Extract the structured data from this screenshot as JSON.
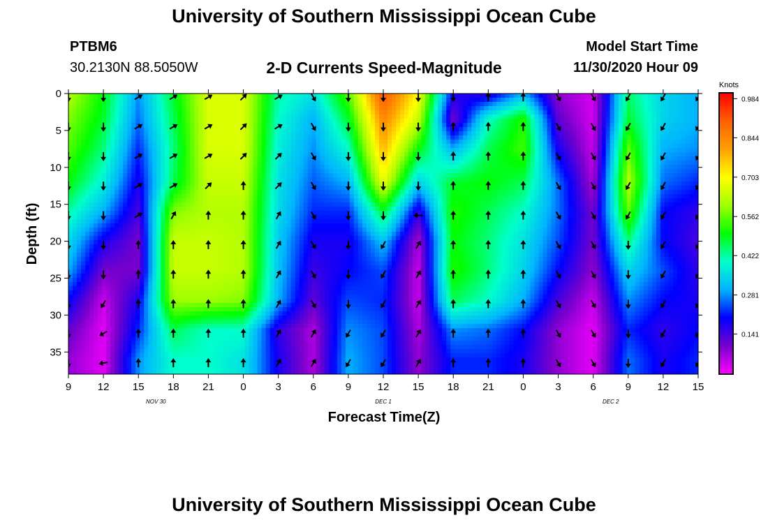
{
  "header": {
    "title": "University of Southern Mississippi Ocean Cube",
    "station_id": "PTBM6",
    "station_location": "30.2130N 88.5050W",
    "chart_subtitle": "2-D Currents Speed-Magnitude",
    "model_start_label": "Model Start Time",
    "model_start_value": "11/30/2020 Hour 09"
  },
  "footer": {
    "title": "University of Southern Mississippi Ocean Cube"
  },
  "colorbar": {
    "unit": "Knots",
    "ticks": [
      "0.984",
      "0.844",
      "0.703",
      "0.562",
      "0.422",
      "0.281",
      "0.141"
    ],
    "tick_values": [
      0.984,
      0.844,
      0.703,
      0.562,
      0.422,
      0.281,
      0.141
    ],
    "range": [
      0.0,
      1.0
    ],
    "colors": [
      "#ff00ff",
      "#7700cc",
      "#0000ff",
      "#00b4ff",
      "#00ffcc",
      "#00ff00",
      "#a0ff00",
      "#ffff00",
      "#ffa000",
      "#ff6000",
      "#ff0000"
    ]
  },
  "chart_data": {
    "type": "heatmap",
    "xlabel": "Forecast Time(Z)",
    "ylabel": "Depth (ft)",
    "x_tick_labels": [
      "9",
      "12",
      "15",
      "18",
      "21",
      "0",
      "3",
      "6",
      "9",
      "12",
      "15",
      "18",
      "21",
      "0",
      "3",
      "6",
      "9",
      "12",
      "15"
    ],
    "x_hours": [
      0,
      3,
      6,
      9,
      12,
      15,
      18,
      21,
      24,
      27,
      30,
      33,
      36,
      39,
      42,
      45,
      48,
      51,
      54
    ],
    "date_labels": [
      {
        "text": "NOV 30",
        "hour": 7.5
      },
      {
        "text": "DEC 1",
        "hour": 27
      },
      {
        "text": "DEC 2",
        "hour": 46.5
      }
    ],
    "y_tick_labels": [
      "0",
      "5",
      "10",
      "15",
      "20",
      "25",
      "30",
      "35"
    ],
    "y_tick_values": [
      0,
      5,
      10,
      15,
      20,
      25,
      30,
      35
    ],
    "xlim_hours": [
      0,
      54
    ],
    "ylim_ft": [
      0,
      38
    ],
    "depths": [
      0,
      3.5,
      7.5,
      12,
      16,
      20,
      24,
      28,
      32,
      36
    ],
    "speed_knots": [
      [
        0.62,
        0.58,
        0.55,
        0.5,
        0.42,
        0.35,
        0.3,
        0.2,
        0.12,
        0.08
      ],
      [
        0.5,
        0.48,
        0.44,
        0.38,
        0.3,
        0.18,
        0.1,
        0.04,
        0.02,
        0.02
      ],
      [
        0.28,
        0.26,
        0.22,
        0.18,
        0.14,
        0.1,
        0.1,
        0.18,
        0.22,
        0.28
      ],
      [
        0.48,
        0.46,
        0.44,
        0.46,
        0.58,
        0.64,
        0.64,
        0.6,
        0.46,
        0.4
      ],
      [
        0.66,
        0.66,
        0.66,
        0.64,
        0.62,
        0.64,
        0.64,
        0.6,
        0.4,
        0.4
      ],
      [
        0.66,
        0.66,
        0.66,
        0.64,
        0.62,
        0.62,
        0.62,
        0.58,
        0.4,
        0.36
      ],
      [
        0.42,
        0.4,
        0.38,
        0.36,
        0.35,
        0.33,
        0.32,
        0.3,
        0.16,
        0.18
      ],
      [
        0.36,
        0.3,
        0.28,
        0.25,
        0.22,
        0.18,
        0.15,
        0.12,
        0.06,
        0.06
      ],
      [
        0.55,
        0.48,
        0.4,
        0.3,
        0.22,
        0.18,
        0.2,
        0.24,
        0.28,
        0.3
      ],
      [
        0.92,
        0.84,
        0.78,
        0.68,
        0.48,
        0.32,
        0.24,
        0.22,
        0.24,
        0.24
      ],
      [
        0.7,
        0.64,
        0.5,
        0.34,
        0.16,
        0.06,
        0.04,
        0.04,
        0.06,
        0.08
      ],
      [
        0.18,
        0.1,
        0.3,
        0.48,
        0.52,
        0.5,
        0.52,
        0.46,
        0.28,
        0.22
      ],
      [
        0.16,
        0.4,
        0.46,
        0.5,
        0.46,
        0.44,
        0.44,
        0.4,
        0.26,
        0.22
      ],
      [
        0.3,
        0.52,
        0.54,
        0.46,
        0.4,
        0.36,
        0.34,
        0.3,
        0.2,
        0.18
      ],
      [
        0.08,
        0.12,
        0.18,
        0.26,
        0.26,
        0.24,
        0.2,
        0.14,
        0.08,
        0.08
      ],
      [
        0.03,
        0.03,
        0.04,
        0.06,
        0.1,
        0.1,
        0.08,
        0.04,
        0.02,
        0.02
      ],
      [
        0.45,
        0.48,
        0.56,
        0.62,
        0.56,
        0.44,
        0.34,
        0.28,
        0.22,
        0.26
      ],
      [
        0.34,
        0.34,
        0.3,
        0.26,
        0.2,
        0.2,
        0.24,
        0.2,
        0.16,
        0.18
      ],
      [
        0.3,
        0.3,
        0.28,
        0.22,
        0.16,
        0.14,
        0.16,
        0.18,
        0.2,
        0.22
      ]
    ],
    "arrow_hours": [
      0,
      3,
      6,
      9,
      12,
      15,
      18,
      21,
      24,
      27,
      30,
      33,
      36,
      39,
      42,
      45,
      48,
      51,
      54
    ],
    "arrow_depths": [
      0.5,
      4.5,
      8.5,
      12.5,
      16.5,
      20.5,
      24.5,
      28.5,
      32.5,
      36.5
    ],
    "direction_deg": [
      [
        180,
        180,
        180,
        180,
        180,
        180,
        180,
        180,
        180,
        180
      ],
      [
        180,
        180,
        180,
        180,
        180,
        180,
        180,
        210,
        240,
        260
      ],
      [
        60,
        60,
        60,
        60,
        60,
        0,
        0,
        0,
        0,
        0
      ],
      [
        60,
        60,
        60,
        60,
        30,
        0,
        0,
        0,
        0,
        0
      ],
      [
        60,
        60,
        60,
        45,
        0,
        0,
        0,
        0,
        0,
        0
      ],
      [
        45,
        45,
        45,
        0,
        0,
        0,
        0,
        0,
        0,
        0
      ],
      [
        60,
        60,
        45,
        45,
        30,
        30,
        30,
        30,
        30,
        30
      ],
      [
        150,
        150,
        150,
        150,
        150,
        150,
        150,
        150,
        30,
        30
      ],
      [
        180,
        180,
        180,
        180,
        180,
        180,
        180,
        180,
        210,
        210
      ],
      [
        180,
        180,
        180,
        180,
        180,
        210,
        210,
        210,
        210,
        210
      ],
      [
        180,
        180,
        180,
        180,
        270,
        30,
        30,
        30,
        30,
        30
      ],
      [
        180,
        0,
        0,
        0,
        0,
        0,
        0,
        0,
        0,
        0
      ],
      [
        0,
        0,
        0,
        0,
        0,
        0,
        0,
        0,
        0,
        0
      ],
      [
        0,
        0,
        0,
        0,
        0,
        0,
        0,
        0,
        0,
        0
      ],
      [
        150,
        150,
        150,
        150,
        150,
        150,
        150,
        150,
        150,
        150
      ],
      [
        150,
        150,
        150,
        150,
        150,
        150,
        150,
        150,
        150,
        150
      ],
      [
        210,
        210,
        210,
        210,
        210,
        180,
        180,
        180,
        180,
        180
      ],
      [
        210,
        210,
        210,
        210,
        210,
        210,
        210,
        210,
        210,
        210
      ],
      [
        210,
        210,
        210,
        210,
        210,
        210,
        210,
        210,
        210,
        210
      ]
    ]
  }
}
